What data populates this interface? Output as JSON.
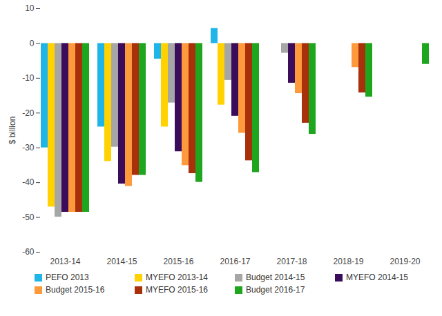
{
  "chart_data": {
    "type": "bar",
    "y_label": "$ billion",
    "categories": [
      "2013-14",
      "2014-15",
      "2015-16",
      "2016-17",
      "2017-18",
      "2018-19",
      "2019-20"
    ],
    "series": [
      {
        "name": "PEFO 2013",
        "color": "#1fb5e8",
        "values": [
          -30,
          -24,
          -4.5,
          4.3,
          null,
          null,
          null
        ]
      },
      {
        "name": "MYEFO 2013-14",
        "color": "#ffd200",
        "values": [
          -47,
          -33.9,
          -24,
          -17.7,
          null,
          null,
          null
        ]
      },
      {
        "name": "Budget 2014-15",
        "color": "#a6a6a6",
        "values": [
          -49.9,
          -29.8,
          -17.1,
          -10.6,
          -2.8,
          null,
          null
        ]
      },
      {
        "name": "MYEFO 2014-15",
        "color": "#3b0b5c",
        "values": [
          -48.5,
          -40.4,
          -31.1,
          -20.9,
          -11.4,
          null,
          null
        ]
      },
      {
        "name": "Budget 2015-16",
        "color": "#ff9a3c",
        "values": [
          -48.5,
          -41.1,
          -35.1,
          -25.8,
          -14.4,
          -6.9,
          null
        ]
      },
      {
        "name": "MYEFO 2015-16",
        "color": "#a8300a",
        "values": [
          -48.5,
          -37.9,
          -37.4,
          -33.7,
          -22.9,
          -14.2,
          null
        ]
      },
      {
        "name": "Budget 2016-17",
        "color": "#1fa61f",
        "values": [
          -48.5,
          -37.9,
          -39.9,
          -37.1,
          -26.1,
          -15.4,
          -6.0
        ]
      }
    ],
    "ylim": [
      -60,
      10
    ],
    "yticks": [
      -60,
      -50,
      -40,
      -30,
      -20,
      -10,
      0,
      10
    ],
    "grid": false,
    "legend": "bottom"
  }
}
